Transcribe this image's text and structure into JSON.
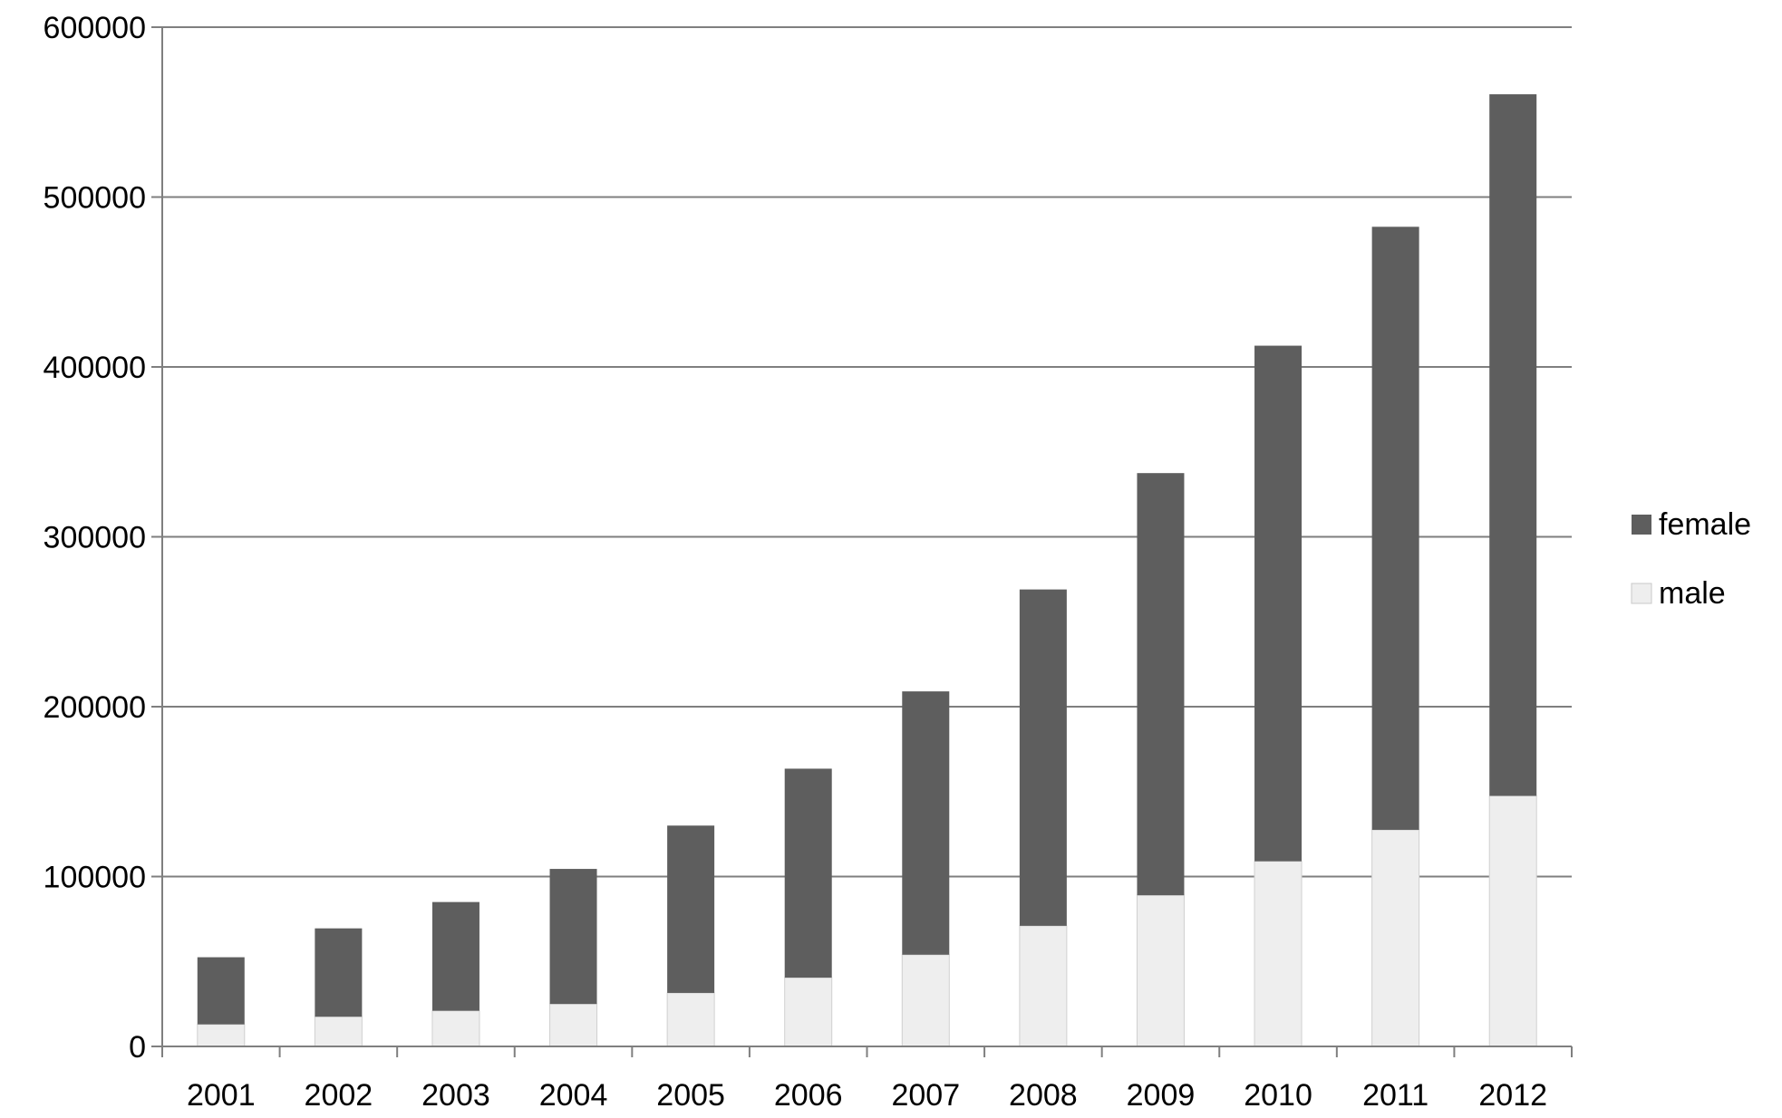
{
  "chart_data": {
    "type": "bar",
    "stacked": true,
    "title": "",
    "xlabel": "",
    "ylabel": "",
    "categories": [
      "2001",
      "2002",
      "2003",
      "2004",
      "2005",
      "2006",
      "2007",
      "2008",
      "2009",
      "2010",
      "2011",
      "2012"
    ],
    "series": [
      {
        "name": "male",
        "color": "#eeeeee",
        "values": [
          13000,
          17500,
          21000,
          25000,
          31500,
          40500,
          54000,
          71000,
          89000,
          109000,
          127500,
          147500
        ]
      },
      {
        "name": "female",
        "color": "#5e5e5e",
        "values": [
          39500,
          52000,
          64000,
          79500,
          98500,
          123000,
          155000,
          198000,
          248500,
          303500,
          355000,
          413000
        ]
      }
    ],
    "ylim": [
      0,
      600000
    ],
    "yticks": [
      "0",
      "100000",
      "200000",
      "300000",
      "400000",
      "500000",
      "600000"
    ],
    "grid": true,
    "legend_position": "right",
    "legend_order": [
      "female",
      "male"
    ]
  }
}
